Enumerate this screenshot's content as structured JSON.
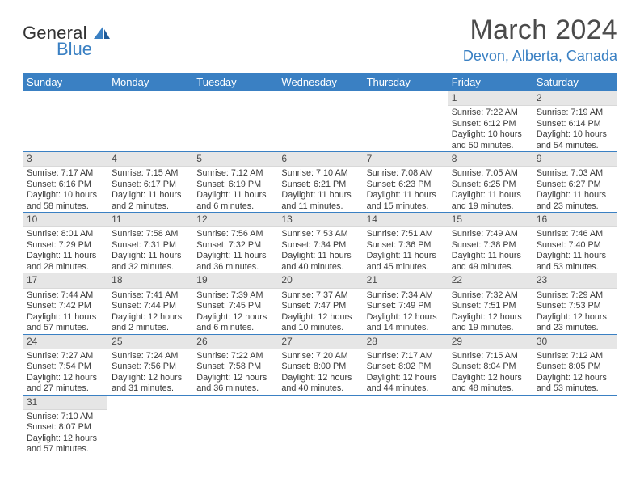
{
  "brand": {
    "part1": "General",
    "part2": "Blue"
  },
  "title": "March 2024",
  "location": "Devon, Alberta, Canada",
  "colors": {
    "accent": "#3a80c3",
    "header_text": "#ffffff",
    "day_bg": "#e6e6e6",
    "text": "#333333"
  },
  "dayHeaders": [
    "Sunday",
    "Monday",
    "Tuesday",
    "Wednesday",
    "Thursday",
    "Friday",
    "Saturday"
  ],
  "weeks": [
    [
      null,
      null,
      null,
      null,
      null,
      {
        "n": "1",
        "sr": "Sunrise: 7:22 AM",
        "ss": "Sunset: 6:12 PM",
        "dl1": "Daylight: 10 hours",
        "dl2": "and 50 minutes."
      },
      {
        "n": "2",
        "sr": "Sunrise: 7:19 AM",
        "ss": "Sunset: 6:14 PM",
        "dl1": "Daylight: 10 hours",
        "dl2": "and 54 minutes."
      }
    ],
    [
      {
        "n": "3",
        "sr": "Sunrise: 7:17 AM",
        "ss": "Sunset: 6:16 PM",
        "dl1": "Daylight: 10 hours",
        "dl2": "and 58 minutes."
      },
      {
        "n": "4",
        "sr": "Sunrise: 7:15 AM",
        "ss": "Sunset: 6:17 PM",
        "dl1": "Daylight: 11 hours",
        "dl2": "and 2 minutes."
      },
      {
        "n": "5",
        "sr": "Sunrise: 7:12 AM",
        "ss": "Sunset: 6:19 PM",
        "dl1": "Daylight: 11 hours",
        "dl2": "and 6 minutes."
      },
      {
        "n": "6",
        "sr": "Sunrise: 7:10 AM",
        "ss": "Sunset: 6:21 PM",
        "dl1": "Daylight: 11 hours",
        "dl2": "and 11 minutes."
      },
      {
        "n": "7",
        "sr": "Sunrise: 7:08 AM",
        "ss": "Sunset: 6:23 PM",
        "dl1": "Daylight: 11 hours",
        "dl2": "and 15 minutes."
      },
      {
        "n": "8",
        "sr": "Sunrise: 7:05 AM",
        "ss": "Sunset: 6:25 PM",
        "dl1": "Daylight: 11 hours",
        "dl2": "and 19 minutes."
      },
      {
        "n": "9",
        "sr": "Sunrise: 7:03 AM",
        "ss": "Sunset: 6:27 PM",
        "dl1": "Daylight: 11 hours",
        "dl2": "and 23 minutes."
      }
    ],
    [
      {
        "n": "10",
        "sr": "Sunrise: 8:01 AM",
        "ss": "Sunset: 7:29 PM",
        "dl1": "Daylight: 11 hours",
        "dl2": "and 28 minutes."
      },
      {
        "n": "11",
        "sr": "Sunrise: 7:58 AM",
        "ss": "Sunset: 7:31 PM",
        "dl1": "Daylight: 11 hours",
        "dl2": "and 32 minutes."
      },
      {
        "n": "12",
        "sr": "Sunrise: 7:56 AM",
        "ss": "Sunset: 7:32 PM",
        "dl1": "Daylight: 11 hours",
        "dl2": "and 36 minutes."
      },
      {
        "n": "13",
        "sr": "Sunrise: 7:53 AM",
        "ss": "Sunset: 7:34 PM",
        "dl1": "Daylight: 11 hours",
        "dl2": "and 40 minutes."
      },
      {
        "n": "14",
        "sr": "Sunrise: 7:51 AM",
        "ss": "Sunset: 7:36 PM",
        "dl1": "Daylight: 11 hours",
        "dl2": "and 45 minutes."
      },
      {
        "n": "15",
        "sr": "Sunrise: 7:49 AM",
        "ss": "Sunset: 7:38 PM",
        "dl1": "Daylight: 11 hours",
        "dl2": "and 49 minutes."
      },
      {
        "n": "16",
        "sr": "Sunrise: 7:46 AM",
        "ss": "Sunset: 7:40 PM",
        "dl1": "Daylight: 11 hours",
        "dl2": "and 53 minutes."
      }
    ],
    [
      {
        "n": "17",
        "sr": "Sunrise: 7:44 AM",
        "ss": "Sunset: 7:42 PM",
        "dl1": "Daylight: 11 hours",
        "dl2": "and 57 minutes."
      },
      {
        "n": "18",
        "sr": "Sunrise: 7:41 AM",
        "ss": "Sunset: 7:44 PM",
        "dl1": "Daylight: 12 hours",
        "dl2": "and 2 minutes."
      },
      {
        "n": "19",
        "sr": "Sunrise: 7:39 AM",
        "ss": "Sunset: 7:45 PM",
        "dl1": "Daylight: 12 hours",
        "dl2": "and 6 minutes."
      },
      {
        "n": "20",
        "sr": "Sunrise: 7:37 AM",
        "ss": "Sunset: 7:47 PM",
        "dl1": "Daylight: 12 hours",
        "dl2": "and 10 minutes."
      },
      {
        "n": "21",
        "sr": "Sunrise: 7:34 AM",
        "ss": "Sunset: 7:49 PM",
        "dl1": "Daylight: 12 hours",
        "dl2": "and 14 minutes."
      },
      {
        "n": "22",
        "sr": "Sunrise: 7:32 AM",
        "ss": "Sunset: 7:51 PM",
        "dl1": "Daylight: 12 hours",
        "dl2": "and 19 minutes."
      },
      {
        "n": "23",
        "sr": "Sunrise: 7:29 AM",
        "ss": "Sunset: 7:53 PM",
        "dl1": "Daylight: 12 hours",
        "dl2": "and 23 minutes."
      }
    ],
    [
      {
        "n": "24",
        "sr": "Sunrise: 7:27 AM",
        "ss": "Sunset: 7:54 PM",
        "dl1": "Daylight: 12 hours",
        "dl2": "and 27 minutes."
      },
      {
        "n": "25",
        "sr": "Sunrise: 7:24 AM",
        "ss": "Sunset: 7:56 PM",
        "dl1": "Daylight: 12 hours",
        "dl2": "and 31 minutes."
      },
      {
        "n": "26",
        "sr": "Sunrise: 7:22 AM",
        "ss": "Sunset: 7:58 PM",
        "dl1": "Daylight: 12 hours",
        "dl2": "and 36 minutes."
      },
      {
        "n": "27",
        "sr": "Sunrise: 7:20 AM",
        "ss": "Sunset: 8:00 PM",
        "dl1": "Daylight: 12 hours",
        "dl2": "and 40 minutes."
      },
      {
        "n": "28",
        "sr": "Sunrise: 7:17 AM",
        "ss": "Sunset: 8:02 PM",
        "dl1": "Daylight: 12 hours",
        "dl2": "and 44 minutes."
      },
      {
        "n": "29",
        "sr": "Sunrise: 7:15 AM",
        "ss": "Sunset: 8:04 PM",
        "dl1": "Daylight: 12 hours",
        "dl2": "and 48 minutes."
      },
      {
        "n": "30",
        "sr": "Sunrise: 7:12 AM",
        "ss": "Sunset: 8:05 PM",
        "dl1": "Daylight: 12 hours",
        "dl2": "and 53 minutes."
      }
    ],
    [
      {
        "n": "31",
        "sr": "Sunrise: 7:10 AM",
        "ss": "Sunset: 8:07 PM",
        "dl1": "Daylight: 12 hours",
        "dl2": "and 57 minutes."
      },
      null,
      null,
      null,
      null,
      null,
      null
    ]
  ]
}
